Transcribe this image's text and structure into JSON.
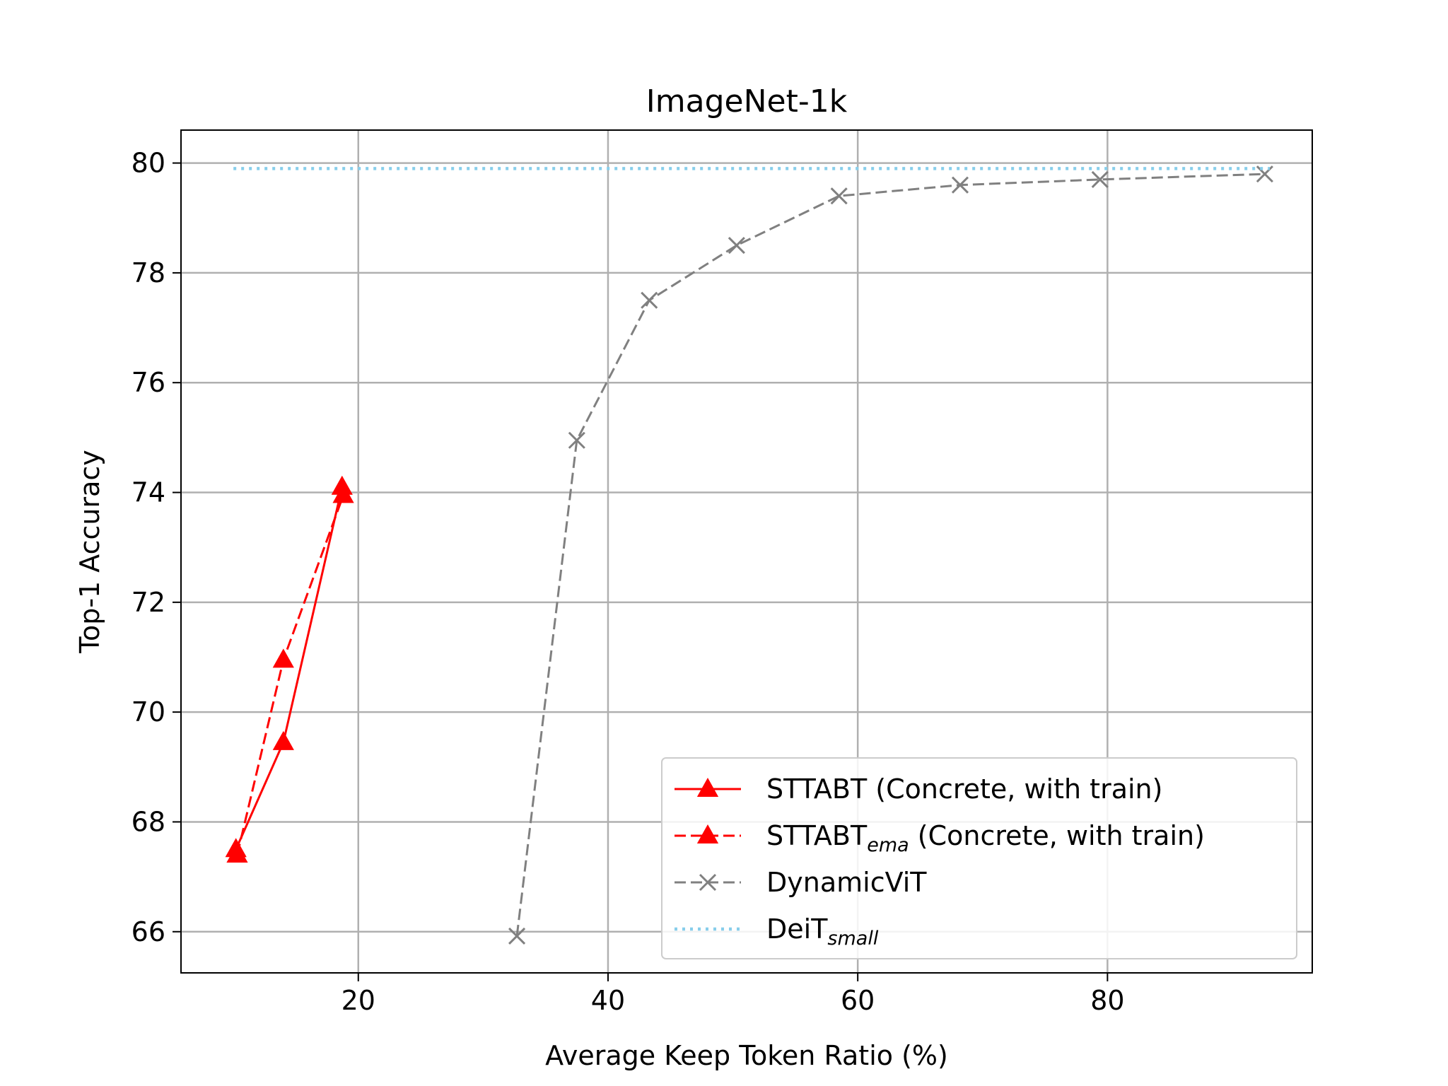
{
  "chart_data": {
    "type": "line",
    "title": "ImageNet-1k",
    "xlabel": "Average Keep Token Ratio (%)",
    "ylabel": "Top-1 Accuracy",
    "xlim": [
      5.8,
      96.4
    ],
    "ylim": [
      65.25,
      80.6
    ],
    "xticks": [
      20,
      40,
      60,
      80
    ],
    "yticks": [
      66,
      68,
      70,
      72,
      74,
      76,
      78,
      80
    ],
    "grid": true,
    "legend_position": "lower right",
    "series": [
      {
        "name": "STTABT (Concrete, with train)",
        "style": "solid",
        "marker": "triangle",
        "color": "#ff0000",
        "x": [
          10.2,
          14.0,
          18.7
        ],
        "y": [
          67.5,
          69.45,
          74.1
        ]
      },
      {
        "name": "STTABT",
        "name_sub": "ema",
        "name_suffix": " (Concrete, with train)",
        "style": "dashed",
        "marker": "triangle",
        "color": "#ff0000",
        "x": [
          10.3,
          14.0,
          18.8
        ],
        "y": [
          67.4,
          70.95,
          73.95
        ]
      },
      {
        "name": "DynamicViT",
        "style": "dashed",
        "marker": "x",
        "color": "#808080",
        "x": [
          32.7,
          37.5,
          43.3,
          50.3,
          58.5,
          68.2,
          79.4,
          92.6
        ],
        "y": [
          65.92,
          74.95,
          77.5,
          78.5,
          79.4,
          79.6,
          79.7,
          79.8
        ]
      },
      {
        "name": "DeiT",
        "name_sub": "small",
        "style": "dotted",
        "marker": "none",
        "color": "#87ceeb",
        "x": [
          10.0,
          93.0
        ],
        "y": [
          79.9,
          79.9
        ]
      }
    ]
  }
}
